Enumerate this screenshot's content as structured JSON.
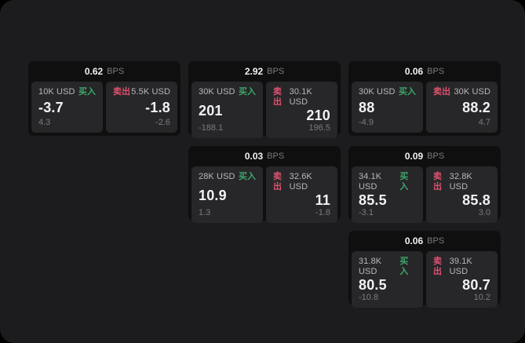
{
  "labels": {
    "bps_unit": "BPS",
    "buy": "买入",
    "sell": "卖出"
  },
  "colors": {
    "background": "#000000",
    "page": "#1c1c1e",
    "card": "#0f0f10",
    "panel": "#27272a",
    "buy": "#3fa66b",
    "sell": "#e0506e",
    "text_primary": "#f2f2f3",
    "text_secondary": "#b7b8bb",
    "text_muted": "#7b7b7f"
  },
  "cards": [
    {
      "bps": "0.62",
      "buy": {
        "amount": "10K USD",
        "price": "-3.7",
        "change": "4.3"
      },
      "sell": {
        "amount": "5.5K USD",
        "price": "-1.8",
        "change": "-2.6"
      }
    },
    {
      "bps": "2.92",
      "buy": {
        "amount": "30K USD",
        "price": "201",
        "change": "-188.1"
      },
      "sell": {
        "amount": "30.1K USD",
        "price": "210",
        "change": "196.5"
      }
    },
    {
      "bps": "0.06",
      "buy": {
        "amount": "30K USD",
        "price": "88",
        "change": "-4.9"
      },
      "sell": {
        "amount": "30K USD",
        "price": "88.2",
        "change": "4.7"
      }
    },
    {
      "bps": "0.03",
      "buy": {
        "amount": "28K USD",
        "price": "10.9",
        "change": "1.3"
      },
      "sell": {
        "amount": "32.6K USD",
        "price": "11",
        "change": "-1.8"
      }
    },
    {
      "bps": "0.09",
      "buy": {
        "amount": "34.1K USD",
        "price": "85.5",
        "change": "-3.1"
      },
      "sell": {
        "amount": "32.8K USD",
        "price": "85.8",
        "change": "3.0"
      }
    },
    {
      "bps": "0.06",
      "buy": {
        "amount": "31.8K USD",
        "price": "80.5",
        "change": "-10.8"
      },
      "sell": {
        "amount": "39.1K USD",
        "price": "80.7",
        "change": "10.2"
      }
    }
  ]
}
